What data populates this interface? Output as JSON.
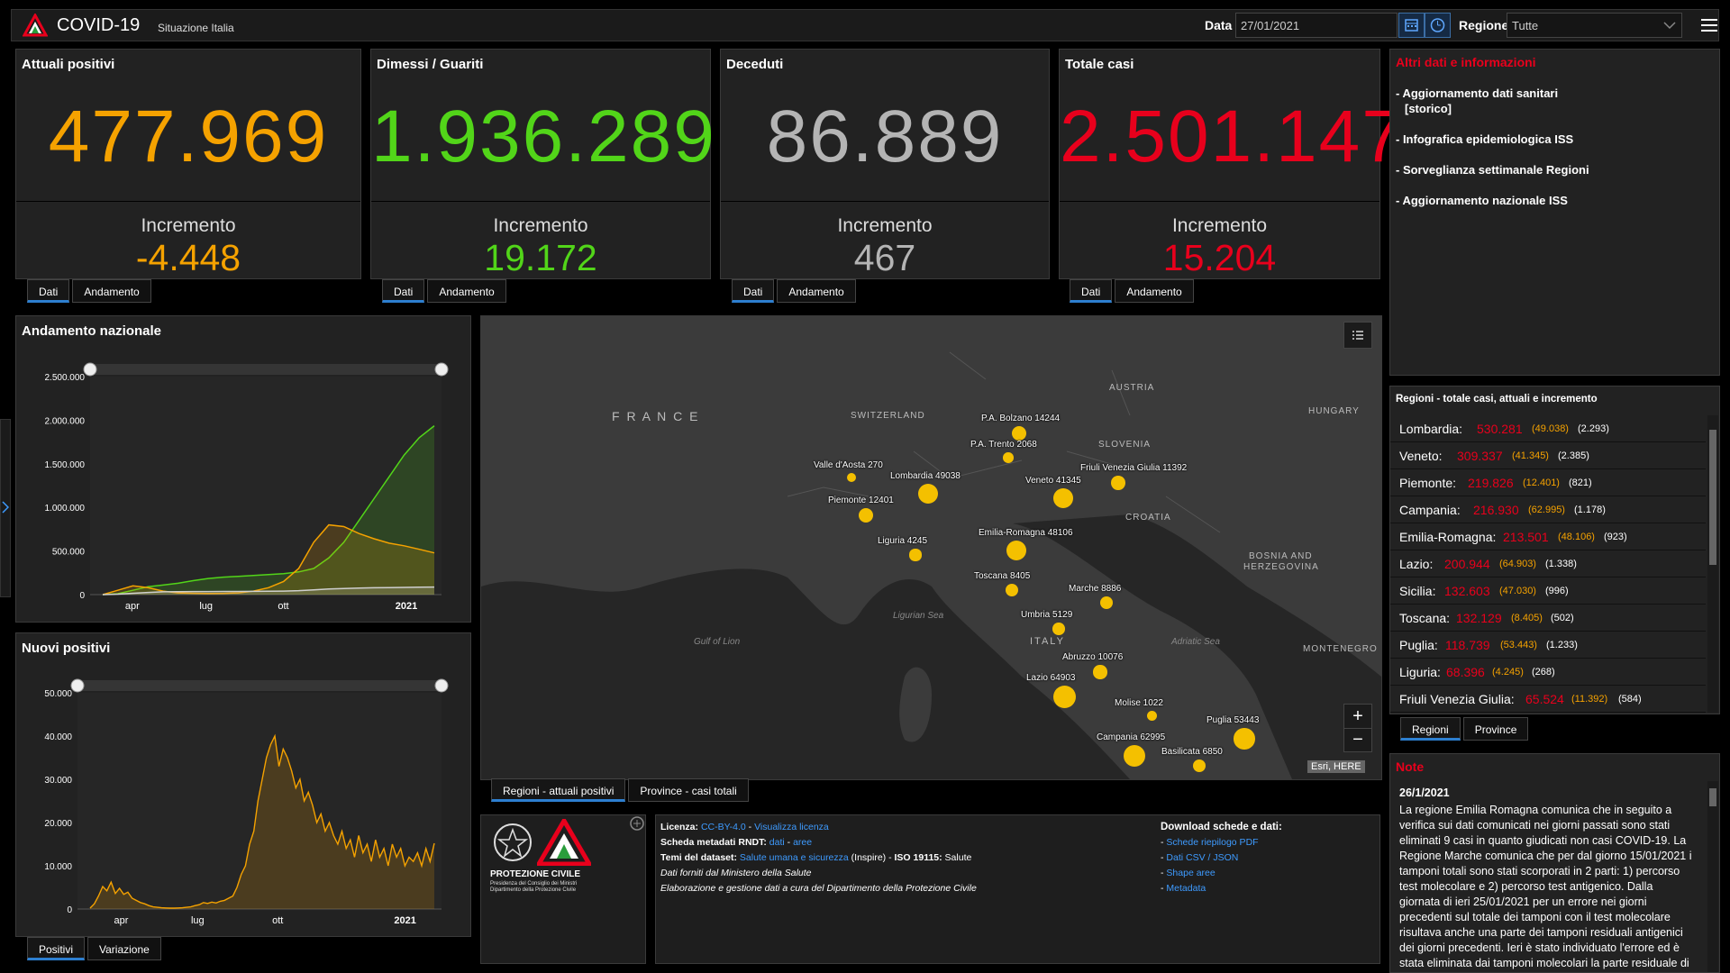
{
  "header": {
    "title": "COVID-19",
    "subtitle": "Situazione Italia",
    "date_label": "Data",
    "date_value": "27/01/2021",
    "region_label": "Regione",
    "region_value": "Tutte"
  },
  "cards": [
    {
      "title": "Attuali positivi",
      "value": "477.969",
      "inc_label": "Incremento",
      "inc_value": "-4.448",
      "color": "#f5a200"
    },
    {
      "title": "Dimessi / Guariti",
      "value": "1.936.289",
      "inc_label": "Incremento",
      "inc_value": "19.172",
      "color": "#52d519"
    },
    {
      "title": "Deceduti",
      "value": "86.889",
      "inc_label": "Incremento",
      "inc_value": "467",
      "color": "#b4b4b4"
    },
    {
      "title": "Totale casi",
      "value": "2.501.147",
      "inc_label": "Incremento",
      "inc_value": "15.204",
      "color": "#e8001c"
    }
  ],
  "card_tabs": {
    "tab1": "Dati",
    "tab2": "Andamento"
  },
  "info": {
    "title": "Altri dati e informazioni",
    "items": [
      "- Aggiornamento dati sanitari",
      "[storico]",
      "- Infografica epidemiologica ISS",
      "- Sorveglianza settimanale Regioni",
      "- Aggiornamento nazionale ISS"
    ]
  },
  "chart_data": [
    {
      "type": "line",
      "title": "Andamento nazionale",
      "yticks": [
        "2.500.000",
        "2.000.000",
        "1.500.000",
        "1.000.000",
        "500.000",
        "0"
      ],
      "xticks": [
        "apr",
        "lug",
        "ott",
        "2021"
      ],
      "ylim": [
        0,
        2500000
      ],
      "series": [
        {
          "color": "#52d519",
          "values": [
            0,
            10000,
            50000,
            90000,
            110000,
            130000,
            160000,
            185000,
            200000,
            210000,
            220000,
            230000,
            240000,
            260000,
            300000,
            420000,
            600000,
            850000,
            1100000,
            1350000,
            1600000,
            1800000,
            1936289
          ]
        },
        {
          "color": "#f5a200",
          "values": [
            0,
            50000,
            100000,
            80000,
            40000,
            20000,
            15000,
            12000,
            14000,
            20000,
            40000,
            80000,
            150000,
            300000,
            600000,
            800000,
            780000,
            700000,
            640000,
            590000,
            560000,
            520000,
            477969
          ]
        },
        {
          "color": "#cfcfcf",
          "values": [
            0,
            5000,
            15000,
            25000,
            32000,
            34000,
            35000,
            35500,
            36000,
            36500,
            37000,
            38000,
            40000,
            45000,
            55000,
            65000,
            70000,
            75000,
            78000,
            80000,
            83000,
            85000,
            86889
          ]
        }
      ]
    },
    {
      "type": "line",
      "title": "Nuovi positivi",
      "yticks": [
        "50.000",
        "40.000",
        "30.000",
        "20.000",
        "10.000",
        "0"
      ],
      "xticks": [
        "apr",
        "lug",
        "ott",
        "2021"
      ],
      "ylim": [
        0,
        50000
      ],
      "series": [
        {
          "color": "#f5a200",
          "values": [
            200,
            1200,
            3000,
            5200,
            4200,
            6200,
            3600,
            4800,
            3400,
            3900,
            2500,
            2000,
            1500,
            1200,
            800,
            500,
            400,
            300,
            250,
            200,
            200,
            250,
            300,
            400,
            500,
            800,
            1000,
            1500,
            1300,
            1600,
            1400,
            1800,
            2000,
            2500,
            3000,
            5000,
            8000,
            10000,
            15000,
            18000,
            25000,
            30000,
            35000,
            38000,
            40000,
            33000,
            37000,
            35000,
            32000,
            28000,
            30000,
            25000,
            27000,
            24000,
            20000,
            22000,
            18000,
            20000,
            17000,
            15000,
            18000,
            14000,
            16000,
            12000,
            17000,
            13000,
            15000,
            11000,
            16000,
            12000,
            14000,
            10000,
            15000,
            12000,
            14000,
            10000,
            12000,
            11000,
            13000,
            10000,
            14000,
            11000,
            15204
          ]
        }
      ]
    }
  ],
  "chart_tabs": {
    "positivi": "Positivi",
    "variazione": "Variazione"
  },
  "map": {
    "countries": [
      "F R A N C E",
      "SWITZERLAND",
      "AUSTRIA",
      "HUNGARY",
      "SLOVENIA",
      "CROATIA",
      "BOSNIA AND",
      "HERZEGOVINA",
      "MONTENEGRO",
      "ITALY"
    ],
    "seas": [
      "Ligurian Sea",
      "Gulf of Lion",
      "Adriatic Sea"
    ],
    "regions": [
      {
        "label": "P.A. Bolzano 14244",
        "value": 14244
      },
      {
        "label": "P.A. Trento 2068",
        "value": 2068
      },
      {
        "label": "Valle d'Aosta 270",
        "value": 270
      },
      {
        "label": "Lombardia 49038",
        "value": 49038
      },
      {
        "label": "Friuli Venezia Giulia 11392",
        "value": 11392
      },
      {
        "label": "Veneto 41345",
        "value": 41345
      },
      {
        "label": "Piemonte 12401",
        "value": 12401
      },
      {
        "label": "Emilia-Romagna 48106",
        "value": 48106
      },
      {
        "label": "Liguria 4245",
        "value": 4245
      },
      {
        "label": "Toscana 8405",
        "value": 8405
      },
      {
        "label": "Marche 8886",
        "value": 8886
      },
      {
        "label": "Umbria 5129",
        "value": 5129
      },
      {
        "label": "Abruzzo 10076",
        "value": 10076
      },
      {
        "label": "Lazio 64903",
        "value": 64903
      },
      {
        "label": "Molise 1022",
        "value": 1022
      },
      {
        "label": "Puglia 53443",
        "value": 53443
      },
      {
        "label": "Campania 62995",
        "value": 62995
      },
      {
        "label": "Basilicata 6850",
        "value": 6850
      }
    ],
    "attribution": "Esri, HERE",
    "tab1": "Regioni - attuali positivi",
    "tab2": "Province - casi totali"
  },
  "regions_panel": {
    "title": "Regioni - totale casi, attuali e incremento",
    "rows": [
      {
        "name": "Lombardia:",
        "total": "530.281",
        "cur": "(49.038)",
        "inc": "(2.293)"
      },
      {
        "name": "Veneto:",
        "total": "309.337",
        "cur": "(41.345)",
        "inc": "(2.385)"
      },
      {
        "name": "Piemonte:",
        "total": "219.826",
        "cur": "(12.401)",
        "inc": "(821)"
      },
      {
        "name": "Campania:",
        "total": "216.930",
        "cur": "(62.995)",
        "inc": "(1.178)"
      },
      {
        "name": "Emilia-Romagna:",
        "total": "213.501",
        "cur": "(48.106)",
        "inc": "(923)"
      },
      {
        "name": "Lazio:",
        "total": "200.944",
        "cur": "(64.903)",
        "inc": "(1.338)"
      },
      {
        "name": "Sicilia:",
        "total": "132.603",
        "cur": "(47.030)",
        "inc": "(996)"
      },
      {
        "name": "Toscana:",
        "total": "132.129",
        "cur": "(8.405)",
        "inc": "(502)"
      },
      {
        "name": "Puglia:",
        "total": "118.739",
        "cur": "(53.443)",
        "inc": "(1.233)"
      },
      {
        "name": "Liguria:",
        "total": "68.396",
        "cur": "(4.245)",
        "inc": "(268)"
      },
      {
        "name": "Friuli Venezia Giulia:",
        "total": "65.524",
        "cur": "(11.392)",
        "inc": "(584)"
      }
    ],
    "tab1": "Regioni",
    "tab2": "Province"
  },
  "note": {
    "title": "Note",
    "date": "26/1/2021",
    "text": "La regione Emilia Romagna comunica che in seguito a verifica sui dati comunicati nei giorni passati sono stati eliminati 9 casi in quanto giudicati non casi COVID-19. La Regione Marche comunica che per dal giorno 15/01/2021 i tamponi totali sono stati scorporati in 2 parti: 1) percorso test molecolare e 2) percorso test antigenico. Dalla giornata di ieri 25/01/2021 per un errore nei giorni precedenti sul totale dei tamponi con il test molecolare risultava anche una parte dei tamponi residuali antigenici dei giorni precedenti. Ieri è stato individuato l'errore ed è stata eliminata dai tamponi molecolari la parte residuale di antigenici."
  },
  "footer": {
    "logo_line1": "PROTEZIONE CIVILE",
    "logo_line2": "Presidenza del Consiglio dei Ministri",
    "logo_line3": "Dipartimento della Protezione Civile",
    "licenza_lbl": "Licenza:",
    "licenza_val": "CC-BY-4.0",
    "licenza_sep": " - ",
    "licenza_link": "Visualizza licenza",
    "scheda_lbl": "Scheda metadati RNDT:",
    "scheda_l1": "dati",
    "scheda_sep": " - ",
    "scheda_l2": "aree",
    "temi_lbl": "Temi del dataset:",
    "temi_link": "Salute umana e sicurezza",
    "temi_rest": " (Inspire) - ",
    "iso_lbl": "ISO 19115:",
    "iso_val": " Salute",
    "line4": "Dati forniti dal Ministero della Salute",
    "line5": "Elaborazione e gestione dati a cura del Dipartimento della Protezione Civile",
    "dl_title": "Download schede e dati:",
    "dl_items": [
      "Schede riepilogo PDF",
      "Dati CSV / JSON",
      "Shape aree",
      "Metadata"
    ]
  }
}
